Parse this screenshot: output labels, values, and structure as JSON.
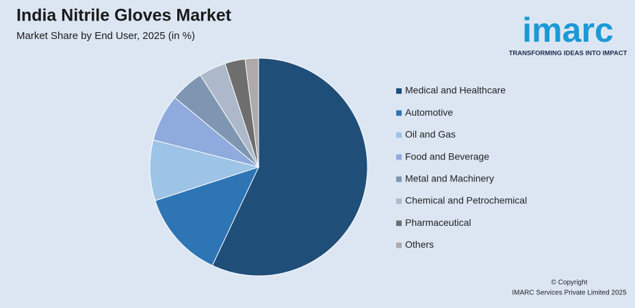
{
  "chart_data": {
    "type": "pie",
    "title": "India Nitrile Gloves Market",
    "subtitle": "Market Share by End User, 2025 (in %)",
    "categories": [
      "Medical and Healthcare",
      "Automotive",
      "Oil and Gas",
      "Food and Beverage",
      "Metal and Machinery",
      "Chemical and Petrochemical",
      "Pharmaceutical",
      "Others"
    ],
    "values": [
      57,
      13,
      9,
      7,
      5,
      4,
      3,
      2
    ],
    "colors": [
      "#1f4e79",
      "#2e75b6",
      "#9dc3e6",
      "#8faadc",
      "#7f96b2",
      "#adb9ca",
      "#6e6e6e",
      "#aeaaaa"
    ],
    "logo": "imarc",
    "tagline": "TRANSFORMING IDEAS INTO IMPACT",
    "copyright": "© Copyright",
    "company": "IMARC Services Private Limited 2025"
  }
}
